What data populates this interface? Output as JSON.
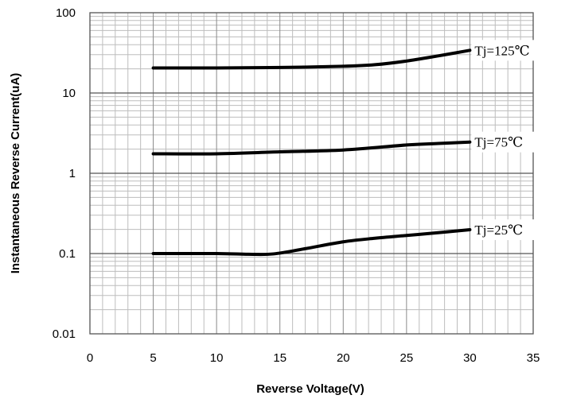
{
  "chart_data": {
    "type": "line",
    "title": "",
    "xlabel": "Reverse Voltage(V)",
    "ylabel": "Instantaneous Reverse Current(uA)",
    "x_scale": "linear",
    "y_scale": "log",
    "xlim": [
      0,
      35
    ],
    "ylim": [
      0.01,
      100
    ],
    "x_ticks": [
      0,
      5,
      10,
      15,
      20,
      25,
      30,
      35
    ],
    "x_tick_labels": [
      "0",
      "5",
      "10",
      "15",
      "20",
      "25",
      "30",
      "35"
    ],
    "y_ticks": [
      0.01,
      0.1,
      1,
      10,
      100
    ],
    "y_tick_labels": [
      "0.01",
      "0.1",
      "1",
      "10",
      "100"
    ],
    "grid": true,
    "series": [
      {
        "name": "Tj=125℃",
        "color": "#000000",
        "points": [
          [
            5,
            20.5
          ],
          [
            10,
            20.5
          ],
          [
            15,
            20.8
          ],
          [
            20,
            21.5
          ],
          [
            22.5,
            22.5
          ],
          [
            25,
            25
          ],
          [
            27.5,
            29
          ],
          [
            30,
            34
          ]
        ]
      },
      {
        "name": "Tj=75℃",
        "color": "#000000",
        "points": [
          [
            5,
            1.75
          ],
          [
            10,
            1.75
          ],
          [
            15,
            1.85
          ],
          [
            20,
            1.95
          ],
          [
            25,
            2.25
          ],
          [
            27.5,
            2.35
          ],
          [
            30,
            2.45
          ]
        ]
      },
      {
        "name": "Tj=25℃",
        "color": "#000000",
        "points": [
          [
            5,
            0.1
          ],
          [
            10,
            0.1
          ],
          [
            12.5,
            0.098
          ],
          [
            14.5,
            0.099
          ],
          [
            17,
            0.115
          ],
          [
            20,
            0.14
          ],
          [
            22.5,
            0.155
          ],
          [
            25,
            0.168
          ],
          [
            27.5,
            0.182
          ],
          [
            30,
            0.198
          ]
        ]
      }
    ]
  }
}
